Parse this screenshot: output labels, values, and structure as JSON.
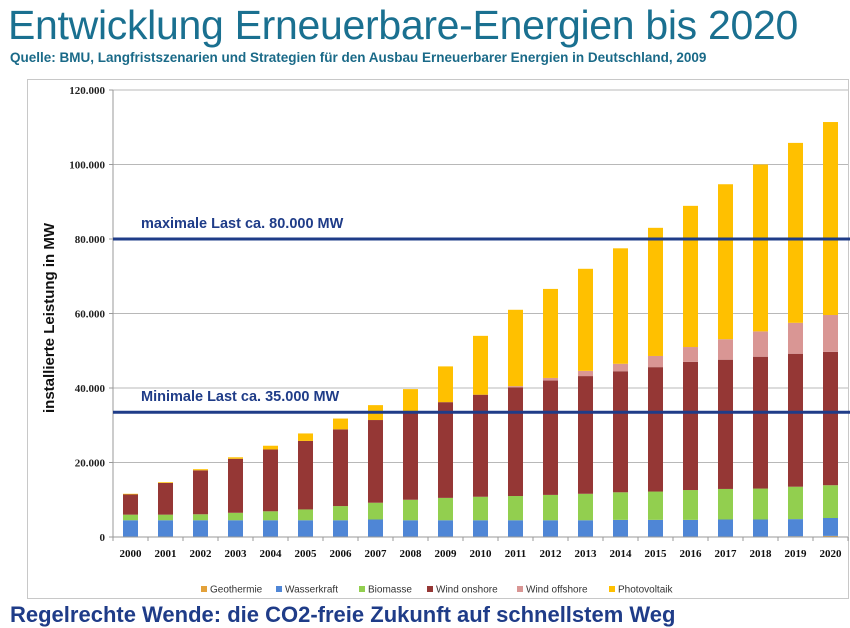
{
  "header": {
    "title": "Entwicklung Erneuerbare-Energien bis 2020",
    "subtitle": "Quelle: BMU, Langfristszenarien und Strategien für den Ausbau Erneuerbarer Energien in Deutschland, 2009"
  },
  "footer": {
    "text": "Regelrechte Wende: die CO2-freie Zukunft auf schnellstem Weg"
  },
  "chart_data": {
    "type": "bar",
    "stacked": true,
    "title": "",
    "xlabel": "",
    "ylabel": "installierte Leistung in MW",
    "ylim": [
      0,
      120000
    ],
    "yticks": [
      0,
      20000,
      40000,
      60000,
      80000,
      100000,
      120000
    ],
    "ytick_labels": [
      "0",
      "20.000",
      "40.000",
      "60.000",
      "80.000",
      "100.000",
      "120.000"
    ],
    "grid": true,
    "legend_position": "bottom",
    "categories": [
      "2000",
      "2001",
      "2002",
      "2003",
      "2004",
      "2005",
      "2006",
      "2007",
      "2008",
      "2009",
      "2010",
      "2011",
      "2012",
      "2013",
      "2014",
      "2015",
      "2016",
      "2017",
      "2018",
      "2019",
      "2020"
    ],
    "series": [
      {
        "name": "Geothermie",
        "color": "#e3a13a",
        "values": [
          0,
          0,
          0,
          0,
          0,
          0,
          0,
          0,
          0,
          0,
          0,
          0,
          0,
          0,
          0,
          0,
          0,
          0,
          0,
          200,
          300
        ]
      },
      {
        "name": "Wasserkraft",
        "color": "#4f86d6",
        "values": [
          4500,
          4500,
          4500,
          4500,
          4500,
          4500,
          4500,
          4700,
          4500,
          4500,
          4500,
          4500,
          4500,
          4500,
          4600,
          4600,
          4600,
          4700,
          4700,
          4600,
          4800
        ]
      },
      {
        "name": "Biomasse",
        "color": "#92cf4f",
        "values": [
          1500,
          1500,
          1600,
          2000,
          2400,
          2900,
          3800,
          4500,
          5500,
          6000,
          6300,
          6500,
          6800,
          7100,
          7400,
          7600,
          8000,
          8200,
          8300,
          8700,
          8800
        ]
      },
      {
        "name": "Wind onshore",
        "color": "#953735",
        "values": [
          5500,
          8500,
          11800,
          14500,
          16600,
          18400,
          20600,
          22200,
          23800,
          25700,
          27400,
          29200,
          30700,
          31600,
          32500,
          33400,
          34400,
          34700,
          35400,
          35700,
          35800
        ]
      },
      {
        "name": "Wind offshore",
        "color": "#d99694",
        "values": [
          0,
          0,
          0,
          0,
          0,
          0,
          0,
          0,
          0,
          0,
          0,
          300,
          700,
          1400,
          2000,
          3000,
          4000,
          5500,
          6800,
          8300,
          9900
        ]
      },
      {
        "name": "Photovoltaik",
        "color": "#ffc000",
        "values": [
          100,
          200,
          300,
          400,
          1000,
          2000,
          2900,
          4000,
          5900,
          9600,
          15800,
          20500,
          23900,
          27400,
          31000,
          34400,
          37900,
          41600,
          44800,
          48300,
          51800
        ]
      }
    ],
    "annotations": [
      {
        "text": "maximale Last ca. 80.000 MW",
        "y": 80000,
        "color": "#1f3c88"
      },
      {
        "text": "Minimale Last ca. 35.000 MW",
        "y": 33500,
        "color": "#1f3c88"
      }
    ]
  }
}
